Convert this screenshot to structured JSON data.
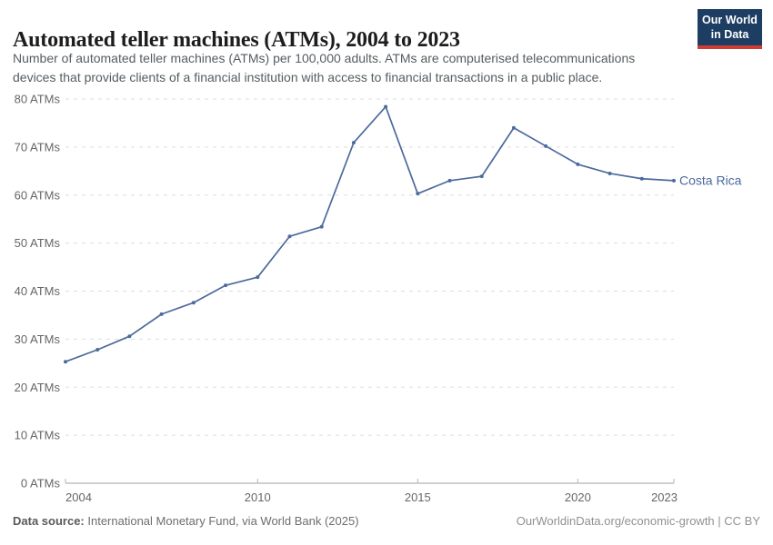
{
  "header": {
    "title": "Automated teller machines (ATMs), 2004 to 2023",
    "subtitle_lines": [
      "Number of automated teller machines (ATMs) per 100,000 adults. ATMs are computerised telecommunications",
      "devices that provide clients of a financial institution with access to financial transactions in a public place."
    ],
    "logo": {
      "line1": "Our World",
      "line2": "in Data"
    }
  },
  "chart_data": {
    "type": "line",
    "title": "Automated teller machines (ATMs), 2004 to 2023",
    "xlabel": "",
    "ylabel": "",
    "x": [
      2004,
      2005,
      2006,
      2007,
      2008,
      2009,
      2010,
      2011,
      2012,
      2013,
      2014,
      2015,
      2016,
      2017,
      2018,
      2019,
      2020,
      2021,
      2022,
      2023
    ],
    "series": [
      {
        "name": "Costa Rica",
        "color": "#4c6a9c",
        "values": [
          25.3,
          27.8,
          30.6,
          35.2,
          37.6,
          41.2,
          42.9,
          51.4,
          53.4,
          70.9,
          78.4,
          60.3,
          63.0,
          63.9,
          74.0,
          70.2,
          66.4,
          64.5,
          63.4,
          63.0
        ]
      }
    ],
    "xlim": [
      2004,
      2023
    ],
    "ylim": [
      0,
      80
    ],
    "xticks": [
      2004,
      2010,
      2015,
      2020,
      2023
    ],
    "yticks": [
      0,
      10,
      20,
      30,
      40,
      50,
      60,
      70,
      80
    ],
    "ytick_suffix": " ATMs",
    "grid": "horizontal-dashed",
    "legend_position": "end-of-line"
  },
  "footer": {
    "datasource_label": "Data source:",
    "datasource_text": " International Monetary Fund, via World Bank (2025)",
    "link_text": "OurWorldinData.org/economic-growth | CC BY"
  },
  "colors": {
    "line": "#4c6a9c",
    "logo_bg": "#1d3d63",
    "logo_stripe": "#d13c32",
    "grid": "#dddddd",
    "tick_text": "#666666"
  }
}
